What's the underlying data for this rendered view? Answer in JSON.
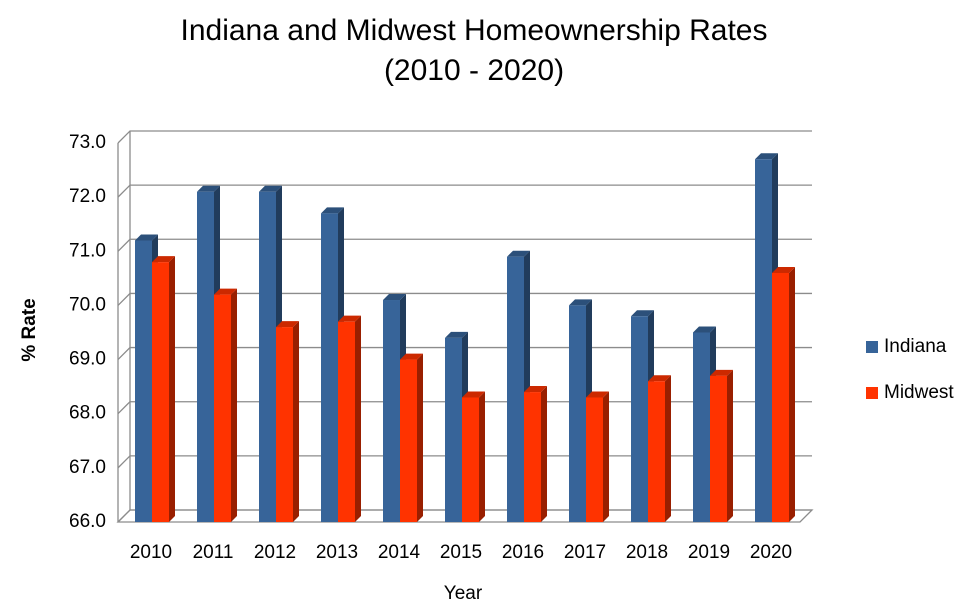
{
  "chart_data": {
    "type": "bar",
    "title": "Indiana and Midwest Homeownership Rates",
    "subtitle": "(2010 - 2020)",
    "x_label": "Year",
    "y_label": "% Rate",
    "categories": [
      "2010",
      "2011",
      "2012",
      "2013",
      "2014",
      "2015",
      "2016",
      "2017",
      "2018",
      "2019",
      "2020"
    ],
    "series": [
      {
        "name": "Indiana",
        "color": "#376499",
        "values": [
          71.2,
          72.1,
          72.1,
          71.7,
          70.1,
          69.4,
          70.9,
          70.0,
          69.8,
          69.5,
          72.7
        ]
      },
      {
        "name": "Midwest",
        "color": "#ff3300",
        "values": [
          70.8,
          70.2,
          69.6,
          69.7,
          69.0,
          68.3,
          68.4,
          68.3,
          68.6,
          68.7,
          70.6
        ]
      }
    ],
    "ylim": [
      66,
      73
    ],
    "yticks": [
      {
        "value": 66,
        "label": "66.0"
      },
      {
        "value": 67,
        "label": "67.0"
      },
      {
        "value": 68,
        "label": "68.0"
      },
      {
        "value": 69,
        "label": "69.0"
      },
      {
        "value": 70,
        "label": "70.0"
      },
      {
        "value": 71,
        "label": "71.0"
      },
      {
        "value": 72,
        "label": "72.0"
      },
      {
        "value": 73,
        "label": "73.0"
      }
    ],
    "grid": true,
    "legend": "right"
  }
}
